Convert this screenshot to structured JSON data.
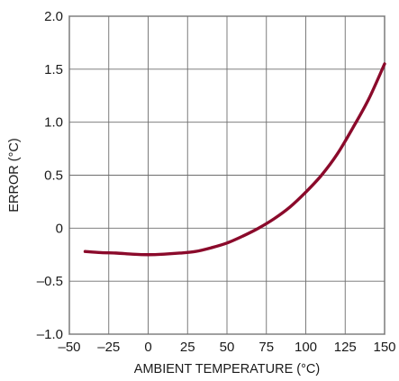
{
  "chart_data": {
    "type": "line",
    "title": "",
    "xlabel": "AMBIENT TEMPERATURE (°C)",
    "ylabel": "ERROR (°C)",
    "xlim": [
      -50,
      150
    ],
    "ylim": [
      -1.0,
      2.0
    ],
    "xticks": [
      -50,
      -25,
      0,
      25,
      50,
      75,
      100,
      125,
      150
    ],
    "xtick_labels": [
      "–50",
      "–25",
      "0",
      "25",
      "50",
      "75",
      "100",
      "125",
      "150"
    ],
    "yticks": [
      -1.0,
      -0.5,
      0,
      0.5,
      1.0,
      1.5,
      2.0
    ],
    "ytick_labels": [
      "–1.0",
      "–0.5",
      "0",
      "0.5",
      "1.0",
      "1.5",
      "2.0"
    ],
    "grid": true,
    "line_color": "#8b0a2b",
    "series": [
      {
        "x": [
          -40,
          -30,
          -20,
          -10,
          0,
          10,
          20,
          30,
          40,
          50,
          60,
          70,
          80,
          90,
          100,
          110,
          120,
          130,
          140,
          150
        ],
        "y": [
          -0.22,
          -0.23,
          -0.235,
          -0.245,
          -0.25,
          -0.245,
          -0.235,
          -0.22,
          -0.185,
          -0.14,
          -0.075,
          0.0,
          0.09,
          0.2,
          0.34,
          0.5,
          0.7,
          0.95,
          1.22,
          1.55
        ]
      }
    ]
  }
}
